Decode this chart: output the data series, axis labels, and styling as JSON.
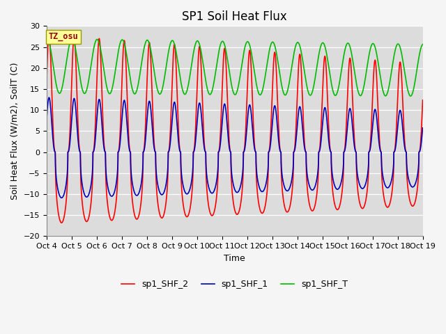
{
  "title": "SP1 Soil Heat Flux",
  "ylabel": "Soil Heat Flux (W/m2), SoilT (C)",
  "xlabel": "Time",
  "ylim": [
    -20,
    30
  ],
  "yticks": [
    -20,
    -15,
    -10,
    -5,
    0,
    5,
    10,
    15,
    20,
    25,
    30
  ],
  "xtick_labels": [
    "Oct 4",
    "Oct 5",
    "Oct 6",
    "Oct 7",
    "Oct 8",
    "Oct 9",
    "Oct 10",
    "Oct 11",
    "Oct 12",
    "Oct 13",
    "Oct 14",
    "Oct 15",
    "Oct 16",
    "Oct 17",
    "Oct 18",
    "Oct 19"
  ],
  "plot_bg_color": "#dcdcdc",
  "fig_bg_color": "#f5f5f5",
  "line_colors": {
    "shf2": "#ff0000",
    "shf1": "#0000bb",
    "shft": "#00bb00"
  },
  "legend_labels": [
    "sp1_SHF_2",
    "sp1_SHF_1",
    "sp1_SHF_T"
  ],
  "tz_label": "TZ_osu",
  "tz_bg": "#ffff99",
  "tz_fg": "#990000",
  "n_days": 15,
  "points_per_day": 288,
  "shf2_peak": 28,
  "shf2_trough": -17,
  "shf1_peak": 13,
  "shf1_trough": -11,
  "shft_peak": 27,
  "shft_trough": 14,
  "shf2_peak_decay": 0.3,
  "title_fontsize": 12,
  "label_fontsize": 9,
  "tick_fontsize": 8,
  "legend_fontsize": 9,
  "linewidth": 1.2
}
